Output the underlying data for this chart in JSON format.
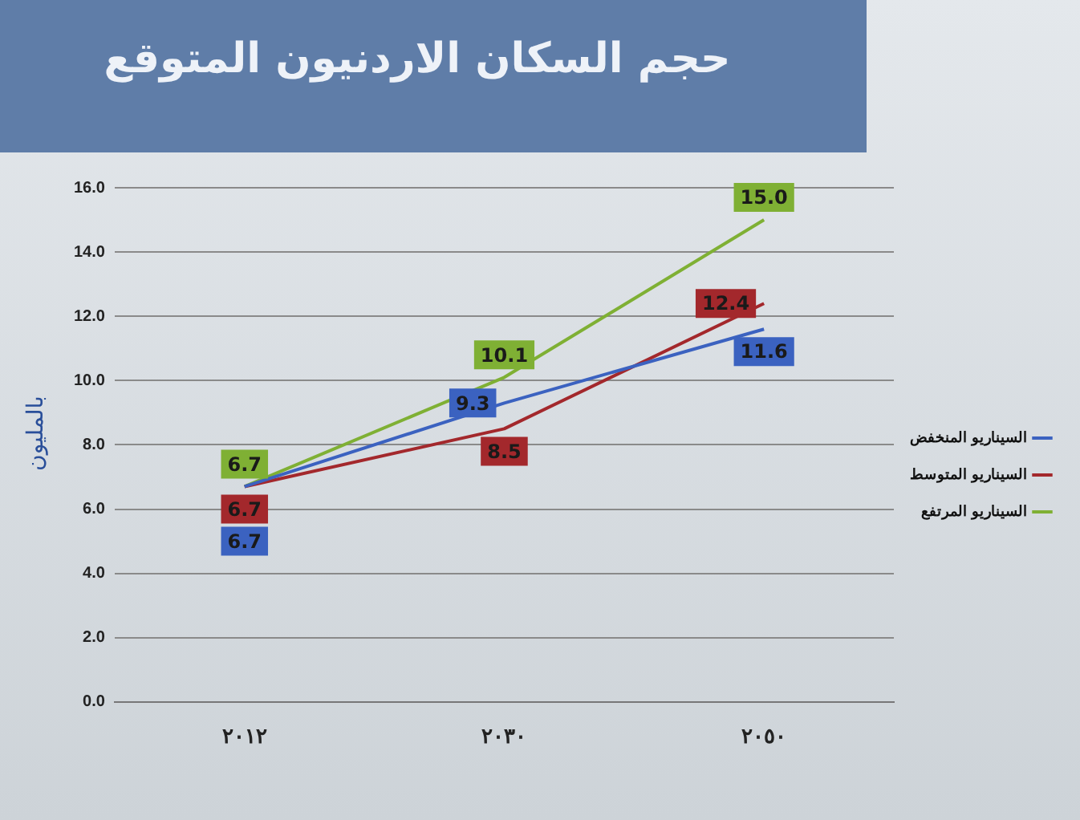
{
  "chart_data": {
    "type": "line",
    "title": "حجم السكان الاردنيون المتوقع",
    "ylabel": "بالمليون",
    "categories": [
      "٢٠١٢",
      "٢٠٣٠",
      "٢٠٥٠"
    ],
    "series": [
      {
        "name": "السيناريو المنخفض",
        "color": "#3b62c0",
        "values": [
          6.7,
          9.3,
          11.6
        ],
        "value_labels": [
          "6.7",
          "9.3",
          "11.6"
        ]
      },
      {
        "name": "السيناريو المتوسط",
        "color": "#a3282c",
        "values": [
          6.7,
          8.5,
          12.4
        ],
        "value_labels": [
          "6.7",
          "8.5",
          "12.4"
        ]
      },
      {
        "name": "السيناريو المرتفع",
        "color": "#7fb034",
        "values": [
          6.7,
          10.1,
          15.0
        ],
        "value_labels": [
          "6.7",
          "10.1",
          "15.0"
        ]
      }
    ],
    "ylim": [
      0,
      16
    ],
    "yticks": [
      {
        "value": 0,
        "label": "0.0"
      },
      {
        "value": 2,
        "label": "2.0"
      },
      {
        "value": 4,
        "label": "4.0"
      },
      {
        "value": 6,
        "label": "6.0"
      },
      {
        "value": 8,
        "label": "8.0"
      },
      {
        "value": 10,
        "label": "10.0"
      },
      {
        "value": 12,
        "label": "12.0"
      },
      {
        "value": 14,
        "label": "14.0"
      },
      {
        "value": 16,
        "label": "16.0"
      }
    ],
    "grid": "y",
    "legend": "right",
    "line_style": "solid"
  }
}
